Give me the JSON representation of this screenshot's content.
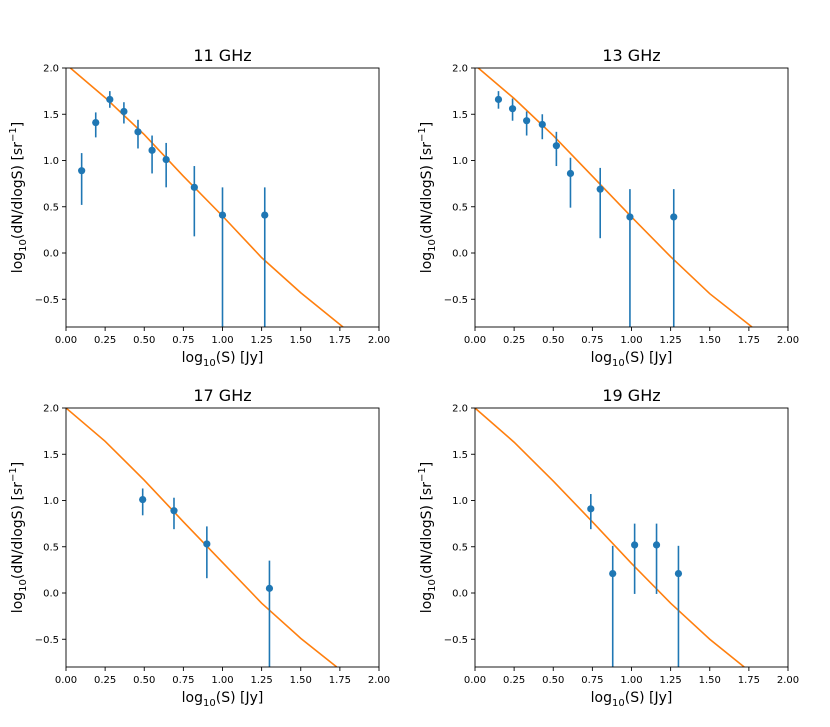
{
  "figure": {
    "colors": {
      "points": "#1f77b4",
      "model": "#ff7f0e",
      "axes": "#000000"
    }
  },
  "chart_data": [
    {
      "type": "scatter",
      "title": "11 GHz",
      "xlabel": "log",
      "xlabel_sub": "10",
      "xlabel_rest": "(S) [Jy]",
      "ylabel": "log",
      "ylabel_sub": "10",
      "ylabel_mid": "(dN/dlogS) [sr",
      "ylabel_sup": "−1",
      "ylabel_end": "]",
      "xlim": [
        0,
        2
      ],
      "ylim": [
        -0.8,
        2.0
      ],
      "xticks": [
        "0.00",
        "0.25",
        "0.50",
        "0.75",
        "1.00",
        "1.25",
        "1.50",
        "1.75",
        "2.00"
      ],
      "yticks": [
        "−0.5",
        "0.0",
        "0.5",
        "1.0",
        "1.5",
        "2.0"
      ],
      "xtick_values": [
        0,
        0.25,
        0.5,
        0.75,
        1.0,
        1.25,
        1.5,
        1.75,
        2.0
      ],
      "ytick_values": [
        -0.5,
        0,
        0.5,
        1.0,
        1.5,
        2.0
      ],
      "series": [
        {
          "name": "data",
          "x": [
            0.1,
            0.19,
            0.28,
            0.37,
            0.46,
            0.55,
            0.64,
            0.82,
            1.0,
            1.27
          ],
          "y": [
            0.89,
            1.41,
            1.66,
            1.53,
            1.31,
            1.11,
            1.01,
            0.71,
            0.41,
            0.41
          ],
          "err_low": [
            0.52,
            1.25,
            1.57,
            1.4,
            1.13,
            0.86,
            0.71,
            0.18,
            -0.8,
            -0.8
          ],
          "err_high": [
            1.08,
            1.52,
            1.75,
            1.63,
            1.44,
            1.27,
            1.19,
            0.94,
            0.71,
            0.71
          ]
        },
        {
          "name": "model",
          "x": [
            0.0,
            0.25,
            0.5,
            0.75,
            1.0,
            1.25,
            1.5,
            1.77
          ],
          "y": [
            2.04,
            1.68,
            1.28,
            0.83,
            0.4,
            -0.05,
            -0.43,
            -0.8
          ]
        }
      ]
    },
    {
      "type": "scatter",
      "title": "13 GHz",
      "xlabel": "log",
      "xlabel_sub": "10",
      "xlabel_rest": "(S) [Jy]",
      "ylabel": "log",
      "ylabel_sub": "10",
      "ylabel_mid": "(dN/dlogS) [sr",
      "ylabel_sup": "−1",
      "ylabel_end": "]",
      "xlim": [
        0,
        2
      ],
      "ylim": [
        -0.8,
        2.0
      ],
      "xticks": [
        "0.00",
        "0.25",
        "0.50",
        "0.75",
        "1.00",
        "1.25",
        "1.50",
        "1.75",
        "2.00"
      ],
      "yticks": [
        "−0.5",
        "0.0",
        "0.5",
        "1.0",
        "1.5",
        "2.0"
      ],
      "xtick_values": [
        0,
        0.25,
        0.5,
        0.75,
        1.0,
        1.25,
        1.5,
        1.75,
        2.0
      ],
      "ytick_values": [
        -0.5,
        0,
        0.5,
        1.0,
        1.5,
        2.0
      ],
      "series": [
        {
          "name": "data",
          "x": [
            0.15,
            0.24,
            0.33,
            0.43,
            0.52,
            0.61,
            0.8,
            0.99,
            1.27
          ],
          "y": [
            1.66,
            1.56,
            1.43,
            1.39,
            1.16,
            0.86,
            0.69,
            0.39,
            0.39
          ],
          "err_low": [
            1.56,
            1.43,
            1.27,
            1.23,
            0.94,
            0.49,
            0.16,
            -0.8,
            -0.8
          ],
          "err_high": [
            1.75,
            1.67,
            1.53,
            1.5,
            1.31,
            1.03,
            0.92,
            0.69,
            0.69
          ]
        },
        {
          "name": "model",
          "x": [
            0.0,
            0.25,
            0.5,
            0.75,
            1.0,
            1.25,
            1.5,
            1.77
          ],
          "y": [
            2.03,
            1.67,
            1.27,
            0.83,
            0.39,
            -0.04,
            -0.44,
            -0.8
          ]
        }
      ]
    },
    {
      "type": "scatter",
      "title": "17 GHz",
      "xlabel": "log",
      "xlabel_sub": "10",
      "xlabel_rest": "(S) [Jy]",
      "ylabel": "log",
      "ylabel_sub": "10",
      "ylabel_mid": "(dN/dlogS) [sr",
      "ylabel_sup": "−1",
      "ylabel_end": "]",
      "xlim": [
        0,
        2
      ],
      "ylim": [
        -0.8,
        2.0
      ],
      "xticks": [
        "0.00",
        "0.25",
        "0.50",
        "0.75",
        "1.00",
        "1.25",
        "1.50",
        "1.75",
        "2.00"
      ],
      "yticks": [
        "−0.5",
        "0.0",
        "0.5",
        "1.0",
        "1.5",
        "2.0"
      ],
      "xtick_values": [
        0,
        0.25,
        0.5,
        0.75,
        1.0,
        1.25,
        1.5,
        1.75,
        2.0
      ],
      "ytick_values": [
        -0.5,
        0,
        0.5,
        1.0,
        1.5,
        2.0
      ],
      "series": [
        {
          "name": "data",
          "x": [
            0.49,
            0.69,
            0.9,
            1.3
          ],
          "y": [
            1.01,
            0.89,
            0.53,
            0.05
          ],
          "err_low": [
            0.84,
            0.69,
            0.16,
            -0.8
          ],
          "err_high": [
            1.13,
            1.03,
            0.72,
            0.35
          ]
        },
        {
          "name": "model",
          "x": [
            0.0,
            0.25,
            0.5,
            0.75,
            1.0,
            1.25,
            1.5,
            1.73
          ],
          "y": [
            2.0,
            1.64,
            1.22,
            0.77,
            0.33,
            -0.11,
            -0.49,
            -0.8
          ]
        }
      ]
    },
    {
      "type": "scatter",
      "title": "19 GHz",
      "xlabel": "log",
      "xlabel_sub": "10",
      "xlabel_rest": "(S) [Jy]",
      "ylabel": "log",
      "ylabel_sub": "10",
      "ylabel_mid": "(dN/dlogS) [sr",
      "ylabel_sup": "−1",
      "ylabel_end": "]",
      "xlim": [
        0,
        2
      ],
      "ylim": [
        -0.8,
        2.0
      ],
      "xticks": [
        "0.00",
        "0.25",
        "0.50",
        "0.75",
        "1.00",
        "1.25",
        "1.50",
        "1.75",
        "2.00"
      ],
      "yticks": [
        "−0.5",
        "0.0",
        "0.5",
        "1.0",
        "1.5",
        "2.0"
      ],
      "xtick_values": [
        0,
        0.25,
        0.5,
        0.75,
        1.0,
        1.25,
        1.5,
        1.75,
        2.0
      ],
      "ytick_values": [
        -0.5,
        0,
        0.5,
        1.0,
        1.5,
        2.0
      ],
      "series": [
        {
          "name": "data",
          "x": [
            0.74,
            0.88,
            1.02,
            1.16,
            1.3
          ],
          "y": [
            0.91,
            0.21,
            0.52,
            0.52,
            0.21
          ],
          "err_low": [
            0.69,
            -0.8,
            -0.01,
            -0.01,
            -0.8
          ],
          "err_high": [
            1.07,
            0.51,
            0.75,
            0.75,
            0.51
          ]
        },
        {
          "name": "model",
          "x": [
            0.0,
            0.25,
            0.5,
            0.75,
            1.0,
            1.25,
            1.5,
            1.72
          ],
          "y": [
            2.0,
            1.63,
            1.21,
            0.77,
            0.32,
            -0.11,
            -0.5,
            -0.8
          ]
        }
      ]
    }
  ]
}
